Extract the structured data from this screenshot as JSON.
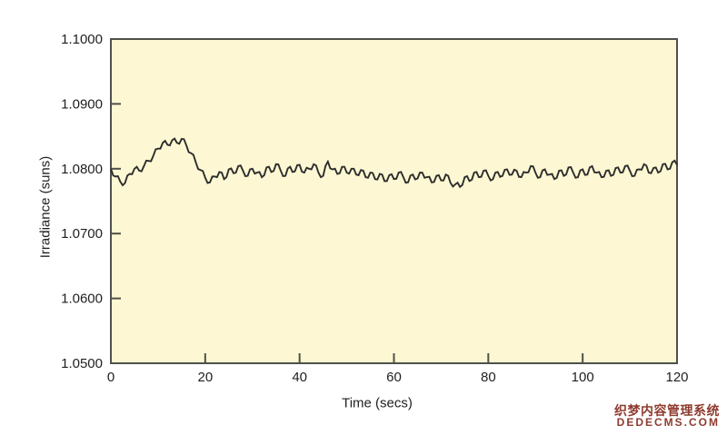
{
  "colors": {
    "page_background": "#ffffff",
    "plot_background": "#FDF8D3",
    "axis": "#50504a",
    "line": "#2d2d2d",
    "tick_text": "#1f1f1f",
    "watermark_red": "#8e3b2e"
  },
  "watermark": {
    "line1": "织梦内容管理系统",
    "line2": "DEDECMS.COM"
  },
  "chart_data": {
    "type": "line",
    "title": "",
    "xlabel": "Time (secs)",
    "ylabel": "Irradiance (suns)",
    "xlim": [
      0,
      120
    ],
    "ylim": [
      1.05,
      1.1
    ],
    "grid": false,
    "legend": "none",
    "xticks": [
      0,
      20,
      40,
      60,
      80,
      100,
      120
    ],
    "xtick_labels": [
      "0",
      "20",
      "40",
      "60",
      "80",
      "100",
      "120"
    ],
    "yticks": [
      1.05,
      1.06,
      1.07,
      1.08,
      1.09,
      1.1
    ],
    "ytick_labels": [
      "1.0500",
      "1.0600",
      "1.0700",
      "1.0800",
      "1.0900",
      "1.1000"
    ],
    "series_name": "Irradiance",
    "x": [
      0,
      1,
      2,
      3,
      4,
      5,
      6,
      7,
      8,
      9,
      10,
      11,
      12,
      13,
      14,
      15,
      16,
      17,
      18,
      19,
      20,
      21,
      22,
      23,
      24,
      25,
      26,
      27,
      28,
      29,
      30,
      31,
      32,
      33,
      34,
      35,
      36,
      37,
      38,
      39,
      40,
      41,
      42,
      43,
      44,
      45,
      46,
      47,
      48,
      49,
      50,
      51,
      52,
      53,
      54,
      55,
      56,
      57,
      58,
      59,
      60,
      61,
      62,
      63,
      64,
      65,
      66,
      67,
      68,
      69,
      70,
      71,
      72,
      73,
      74,
      75,
      76,
      77,
      78,
      79,
      80,
      81,
      82,
      83,
      84,
      85,
      86,
      87,
      88,
      89,
      90,
      91,
      92,
      93,
      94,
      95,
      96,
      97,
      98,
      99,
      100,
      101,
      102,
      103,
      104,
      105,
      106,
      107,
      108,
      109,
      110,
      111,
      112,
      113,
      114,
      115,
      116,
      117,
      118,
      119,
      120
    ],
    "values": [
      1.08,
      1.0788,
      1.078,
      1.0778,
      1.0792,
      1.08,
      1.0797,
      1.0804,
      1.0812,
      1.082,
      1.0831,
      1.084,
      1.0837,
      1.0844,
      1.084,
      1.0846,
      1.0836,
      1.0824,
      1.081,
      1.0798,
      1.0786,
      1.0779,
      1.0788,
      1.0795,
      1.0784,
      1.0799,
      1.0793,
      1.0804,
      1.0797,
      1.0789,
      1.08,
      1.0794,
      1.0787,
      1.0802,
      1.0795,
      1.0807,
      1.0797,
      1.0789,
      1.0803,
      1.0796,
      1.0806,
      1.0794,
      1.08,
      1.0807,
      1.0794,
      1.0789,
      1.0811,
      1.0799,
      1.0792,
      1.0803,
      1.0794,
      1.08,
      1.0791,
      1.0798,
      1.0787,
      1.0794,
      1.0784,
      1.0792,
      1.0781,
      1.079,
      1.0784,
      1.0794,
      1.0787,
      1.0779,
      1.0791,
      1.0785,
      1.0794,
      1.0787,
      1.0779,
      1.0789,
      1.0782,
      1.0791,
      1.0778,
      1.0776,
      1.0772,
      1.0787,
      1.0781,
      1.0794,
      1.0787,
      1.0797,
      1.0789,
      1.0784,
      1.0795,
      1.0789,
      1.0799,
      1.0791,
      1.0797,
      1.0787,
      1.0794,
      1.0804,
      1.0794,
      1.0787,
      1.0799,
      1.0791,
      1.0784,
      1.0797,
      1.0789,
      1.0802,
      1.0794,
      1.0787,
      1.0799,
      1.0791,
      1.0804,
      1.0794,
      1.0787,
      1.0797,
      1.0789,
      1.0801,
      1.0794,
      1.0804,
      1.0797,
      1.0789,
      1.0799,
      1.0807,
      1.0794,
      1.0801,
      1.0794,
      1.0807,
      1.0799,
      1.081,
      1.0806
    ]
  }
}
